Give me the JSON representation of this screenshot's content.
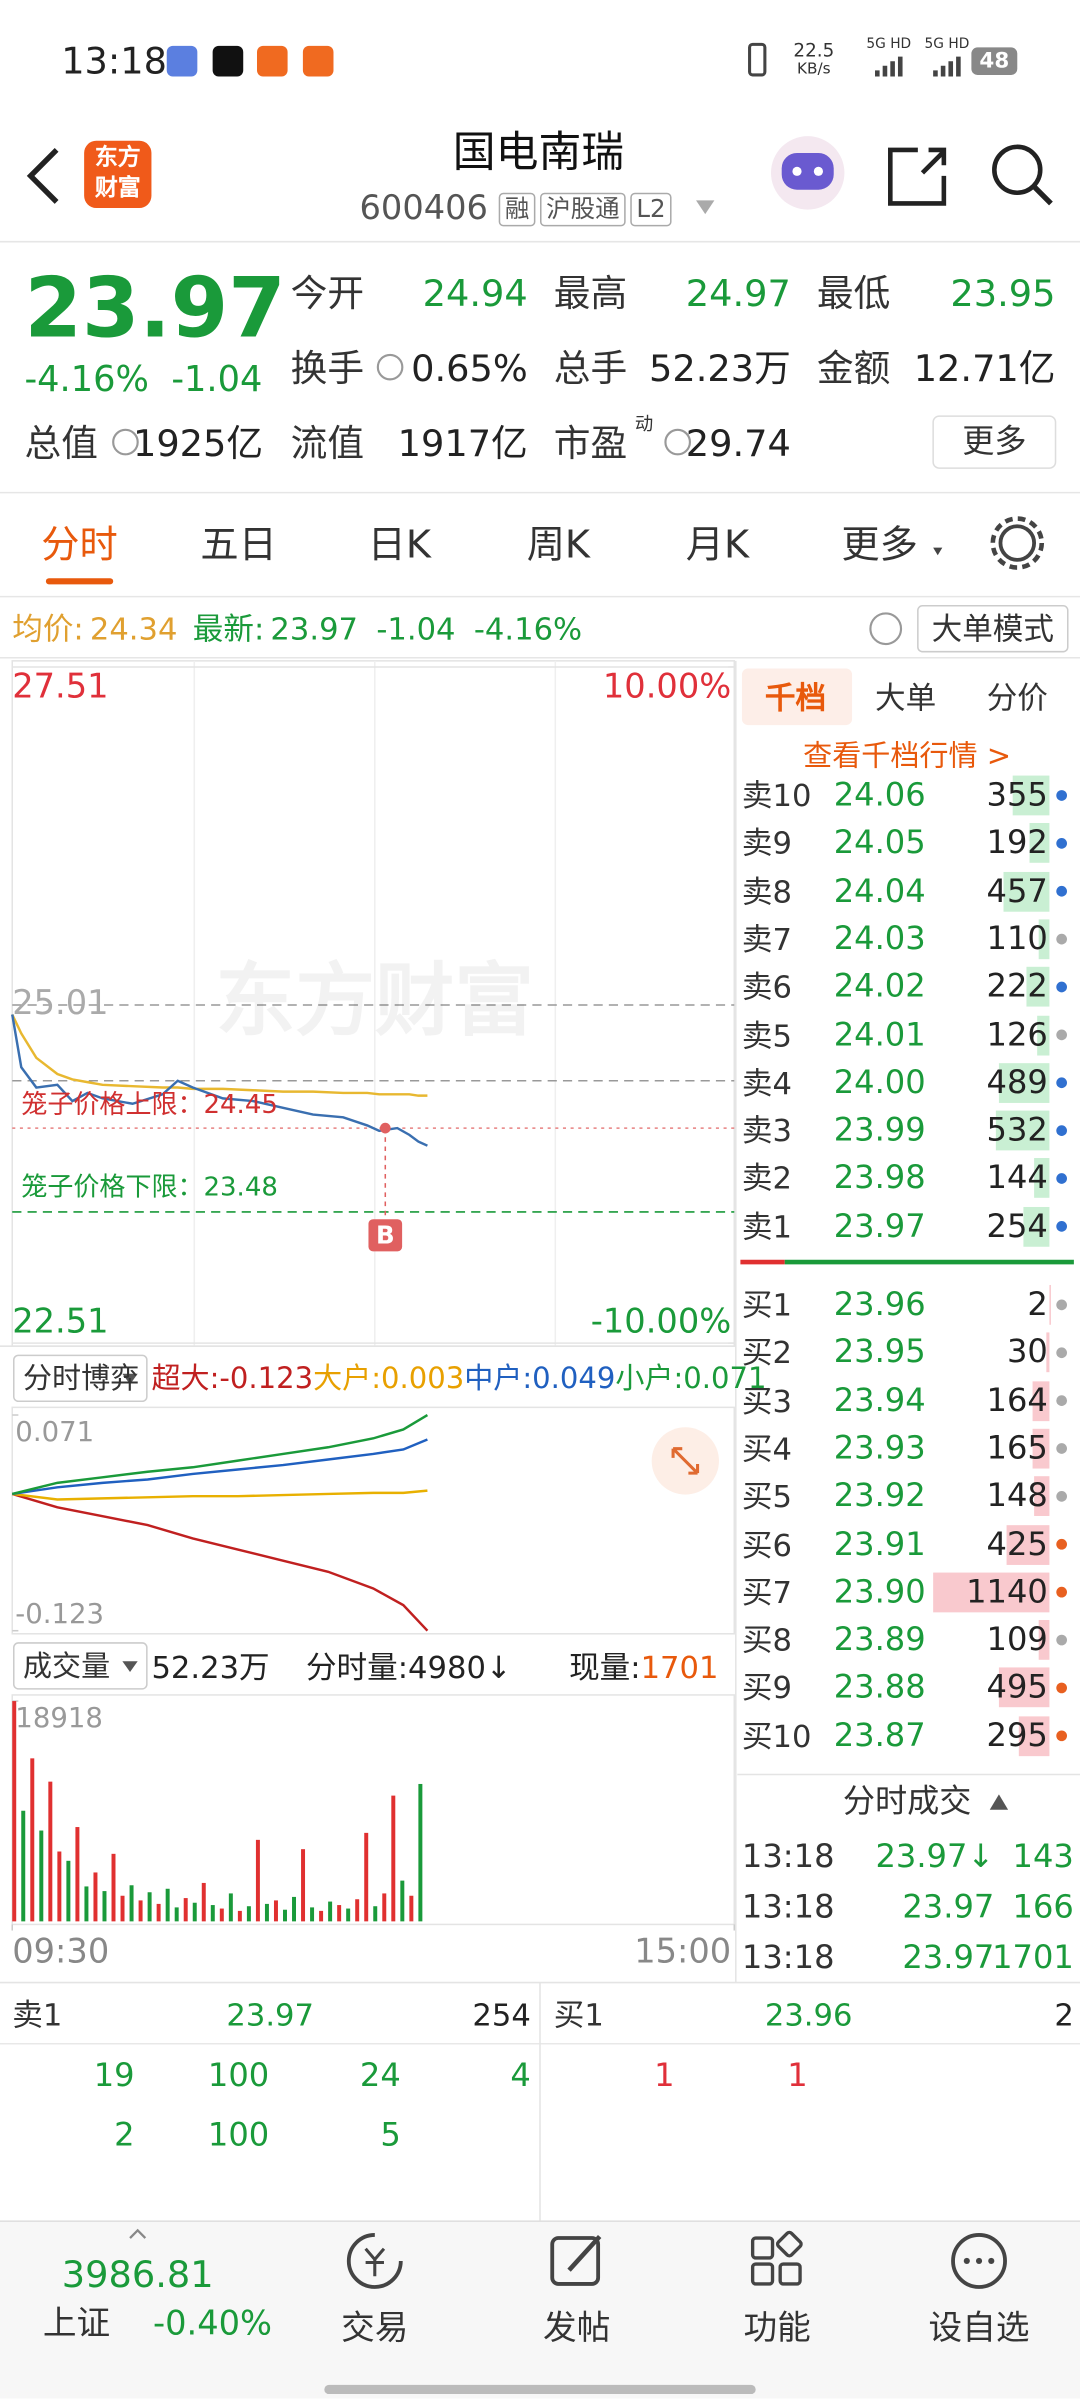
{
  "status_bar": {
    "time": "13:18",
    "speed": "22.5",
    "speed_unit": "KB/s",
    "network": [
      "5G HD",
      "5G HD"
    ],
    "battery": "48"
  },
  "header": {
    "logo": [
      "东方",
      "财富"
    ],
    "title": "国电南瑞",
    "code": "600406",
    "tags": [
      "融",
      "沪股通",
      "L2"
    ]
  },
  "quote": {
    "price": "23.97",
    "change_pct": "-4.16%",
    "change": "-1.04",
    "fields": [
      {
        "label": "今开",
        "value": "24.94",
        "color": "#1a9a3a"
      },
      {
        "label": "最高",
        "value": "24.97",
        "color": "#1a9a3a"
      },
      {
        "label": "最低",
        "value": "23.95",
        "color": "#1a9a3a"
      },
      {
        "label": "换手",
        "value": "0.65%",
        "color": "#222222"
      },
      {
        "label": "总手",
        "value": "52.23万",
        "color": "#222222"
      },
      {
        "label": "金额",
        "value": "12.71亿",
        "color": "#222222"
      },
      {
        "label": "总值",
        "value": "1925亿",
        "color": "#222222"
      },
      {
        "label": "流值",
        "value": "1917亿",
        "color": "#222222"
      },
      {
        "label": "市盈",
        "superscript": "动",
        "value": "29.74",
        "color": "#222222"
      }
    ],
    "more": "更多"
  },
  "tabs": [
    "分时",
    "五日",
    "日K",
    "周K",
    "月K",
    "更多"
  ],
  "summary": {
    "avg_label": "均价:",
    "avg": "24.34",
    "latest_label": "最新:",
    "latest": "23.97",
    "change": "-1.04",
    "change_pct": "-4.16%",
    "mode": "大单模式"
  },
  "intraday_chart": {
    "type": "line",
    "watermark": "东方财富",
    "xlim": [
      0,
      240
    ],
    "xticks": [
      {
        "value": 0,
        "label": "09:30"
      },
      {
        "value": 240,
        "label": "15:00"
      }
    ],
    "ylim": [
      22.51,
      27.51
    ],
    "yticks": [
      22.51,
      25.01,
      27.51
    ],
    "y2lim": [
      -10,
      10
    ],
    "y2ticks": [
      {
        "value": -10,
        "label": "-10.00%"
      },
      {
        "value": 10,
        "label": "10.00%"
      }
    ],
    "x": [
      0,
      3,
      8,
      15,
      20,
      25,
      30,
      40,
      50,
      55,
      60,
      70,
      80,
      90,
      100,
      110,
      118,
      122,
      128,
      132,
      135,
      138
    ],
    "price": {
      "color": "#3a6fb0",
      "values": [
        24.94,
        24.55,
        24.4,
        24.42,
        24.3,
        24.36,
        24.32,
        24.28,
        24.35,
        24.45,
        24.4,
        24.32,
        24.3,
        24.25,
        24.2,
        24.18,
        24.12,
        24.08,
        24.1,
        24.05,
        24.0,
        23.97
      ]
    },
    "avg": {
      "color": "#e8b830",
      "values": [
        24.94,
        24.8,
        24.62,
        24.5,
        24.46,
        24.44,
        24.42,
        24.41,
        24.4,
        24.4,
        24.39,
        24.39,
        24.38,
        24.37,
        24.37,
        24.36,
        24.36,
        24.35,
        24.35,
        24.35,
        24.34,
        24.34
      ]
    },
    "annotations": [
      {
        "label": "笼子价格上限：",
        "value": 24.45,
        "color": "#d03030",
        "line_color": "#999999"
      },
      {
        "label": "笼子价格下限：",
        "value": 23.48,
        "color": "#1a9a3a",
        "line_color": "#1a9a3a"
      }
    ],
    "buy_marker": {
      "label": "B",
      "x": 124,
      "value": 24.1,
      "color": "#e06060"
    }
  },
  "flow_chart": {
    "type": "line",
    "title": "分时博弈",
    "ylim": [
      -0.123,
      0.071
    ],
    "yticks": [
      -0.123,
      0.071
    ],
    "x": [
      0,
      15,
      30,
      45,
      60,
      75,
      90,
      105,
      120,
      130,
      138
    ],
    "series": [
      {
        "legend": "超大:-0.123",
        "color": "#c02020",
        "values": [
          0,
          -0.012,
          -0.02,
          -0.028,
          -0.04,
          -0.05,
          -0.06,
          -0.07,
          -0.085,
          -0.1,
          -0.123
        ]
      },
      {
        "legend": "大户:0.003",
        "color": "#e8b000",
        "values": [
          0,
          -0.005,
          -0.004,
          -0.003,
          -0.002,
          -0.002,
          -0.001,
          0.0,
          0.001,
          0.001,
          0.003
        ]
      },
      {
        "legend": "中户:0.049",
        "color": "#2060c0",
        "values": [
          0,
          0.006,
          0.01,
          0.013,
          0.018,
          0.022,
          0.026,
          0.031,
          0.036,
          0.04,
          0.049
        ]
      },
      {
        "legend": "小户:0.071",
        "color": "#1a9a3a",
        "values": [
          0,
          0.01,
          0.015,
          0.02,
          0.024,
          0.03,
          0.036,
          0.042,
          0.05,
          0.058,
          0.071
        ]
      }
    ]
  },
  "volume_chart": {
    "type": "bar",
    "title": "成交量",
    "total": "52.23万",
    "minute_volume": "分时量:4980↓",
    "current_label": "现量:",
    "current": "1701",
    "ylim": [
      0,
      18918
    ],
    "yticks": [
      18918
    ],
    "x": [
      0,
      3,
      6,
      9,
      12,
      15,
      18,
      21,
      24,
      27,
      30,
      33,
      36,
      39,
      42,
      45,
      48,
      51,
      54,
      57,
      60,
      63,
      66,
      69,
      72,
      75,
      78,
      81,
      84,
      87,
      90,
      93,
      96,
      99,
      102,
      105,
      108,
      111,
      114,
      117,
      120,
      123,
      126,
      129,
      132,
      135
    ],
    "values": [
      18918,
      9500,
      14000,
      7800,
      12000,
      6000,
      5200,
      8100,
      3000,
      4200,
      2600,
      5800,
      2200,
      3100,
      1800,
      2500,
      1500,
      2800,
      1200,
      2000,
      1600,
      3300,
      1400,
      1100,
      2400,
      900,
      1300,
      7000,
      1500,
      1800,
      1000,
      2100,
      6200,
      1200,
      900,
      1700,
      1400,
      1100,
      1900,
      7600,
      1300,
      2400,
      10800,
      3500,
      2200,
      11800
    ],
    "colors": [
      "#e03030",
      "#1a9a3a",
      "#e03030",
      "#1a9a3a",
      "#e03030",
      "#e03030",
      "#1a9a3a",
      "#e03030",
      "#1a9a3a",
      "#e03030",
      "#1a9a3a",
      "#e03030",
      "#e03030",
      "#1a9a3a",
      "#e03030",
      "#1a9a3a",
      "#e03030",
      "#1a9a3a",
      "#1a9a3a",
      "#e03030",
      "#1a9a3a",
      "#e03030",
      "#1a9a3a",
      "#e03030",
      "#1a9a3a",
      "#e03030",
      "#1a9a3a",
      "#e03030",
      "#1a9a3a",
      "#e03030",
      "#1a9a3a",
      "#1a9a3a",
      "#e03030",
      "#1a9a3a",
      "#e03030",
      "#1a9a3a",
      "#e03030",
      "#1a9a3a",
      "#e03030",
      "#e03030",
      "#1a9a3a",
      "#e03030",
      "#e03030",
      "#1a9a3a",
      "#e03030",
      "#1a9a3a"
    ]
  },
  "order_book": {
    "tabs": [
      "千档",
      "大单",
      "分价"
    ],
    "link": "查看千档行情 >",
    "sells": [
      {
        "label": "卖10",
        "price": "24.06",
        "volume": 355,
        "dot": "#3070d0"
      },
      {
        "label": "卖9",
        "price": "24.05",
        "volume": 192,
        "dot": "#3070d0"
      },
      {
        "label": "卖8",
        "price": "24.04",
        "volume": 457,
        "dot": "#3070d0"
      },
      {
        "label": "卖7",
        "price": "24.03",
        "volume": 110,
        "dot": "#aaaaaa"
      },
      {
        "label": "卖6",
        "price": "24.02",
        "volume": 222,
        "dot": "#3070d0"
      },
      {
        "label": "卖5",
        "price": "24.01",
        "volume": 126,
        "dot": "#aaaaaa"
      },
      {
        "label": "卖4",
        "price": "24.00",
        "volume": 489,
        "dot": "#3070d0"
      },
      {
        "label": "卖3",
        "price": "23.99",
        "volume": 532,
        "dot": "#3070d0"
      },
      {
        "label": "卖2",
        "price": "23.98",
        "volume": 144,
        "dot": "#3070d0"
      },
      {
        "label": "卖1",
        "price": "23.97",
        "volume": 254,
        "dot": "#3070d0"
      }
    ],
    "buys": [
      {
        "label": "买1",
        "price": "23.96",
        "volume": 2,
        "dot": "#aaaaaa"
      },
      {
        "label": "买2",
        "price": "23.95",
        "volume": 30,
        "dot": "#aaaaaa"
      },
      {
        "label": "买3",
        "price": "23.94",
        "volume": 164,
        "dot": "#aaaaaa"
      },
      {
        "label": "买4",
        "price": "23.93",
        "volume": 165,
        "dot": "#aaaaaa"
      },
      {
        "label": "买5",
        "price": "23.92",
        "volume": 148,
        "dot": "#aaaaaa"
      },
      {
        "label": "买6",
        "price": "23.91",
        "volume": 425,
        "dot": "#e86020"
      },
      {
        "label": "买7",
        "price": "23.90",
        "volume": 1140,
        "dot": "#e86020"
      },
      {
        "label": "买8",
        "price": "23.89",
        "volume": 109,
        "dot": "#aaaaaa"
      },
      {
        "label": "买9",
        "price": "23.88",
        "volume": 495,
        "dot": "#e86020"
      },
      {
        "label": "买10",
        "price": "23.87",
        "volume": 295,
        "dot": "#e86020"
      }
    ]
  },
  "trades": {
    "title": "分时成交",
    "rows": [
      [
        "13:18",
        "23.97↓",
        "143"
      ],
      [
        "13:18",
        "23.97",
        "166"
      ],
      [
        "13:18",
        "23.97",
        "1701"
      ]
    ]
  },
  "level1": {
    "sell": [
      "卖1",
      "23.97",
      "254"
    ],
    "buy": [
      "买1",
      "23.96",
      "2"
    ],
    "sell_rows": [
      [
        "19",
        "100",
        "24",
        "4"
      ],
      [
        "2",
        "100",
        "5"
      ]
    ],
    "buy_rows": [
      [
        "1",
        "1"
      ]
    ]
  },
  "bottom_nav": {
    "index": {
      "value": "3986.81",
      "name": "上证",
      "change": "-0.40%"
    },
    "items": [
      "交易",
      "发帖",
      "功能",
      "设自选"
    ]
  }
}
